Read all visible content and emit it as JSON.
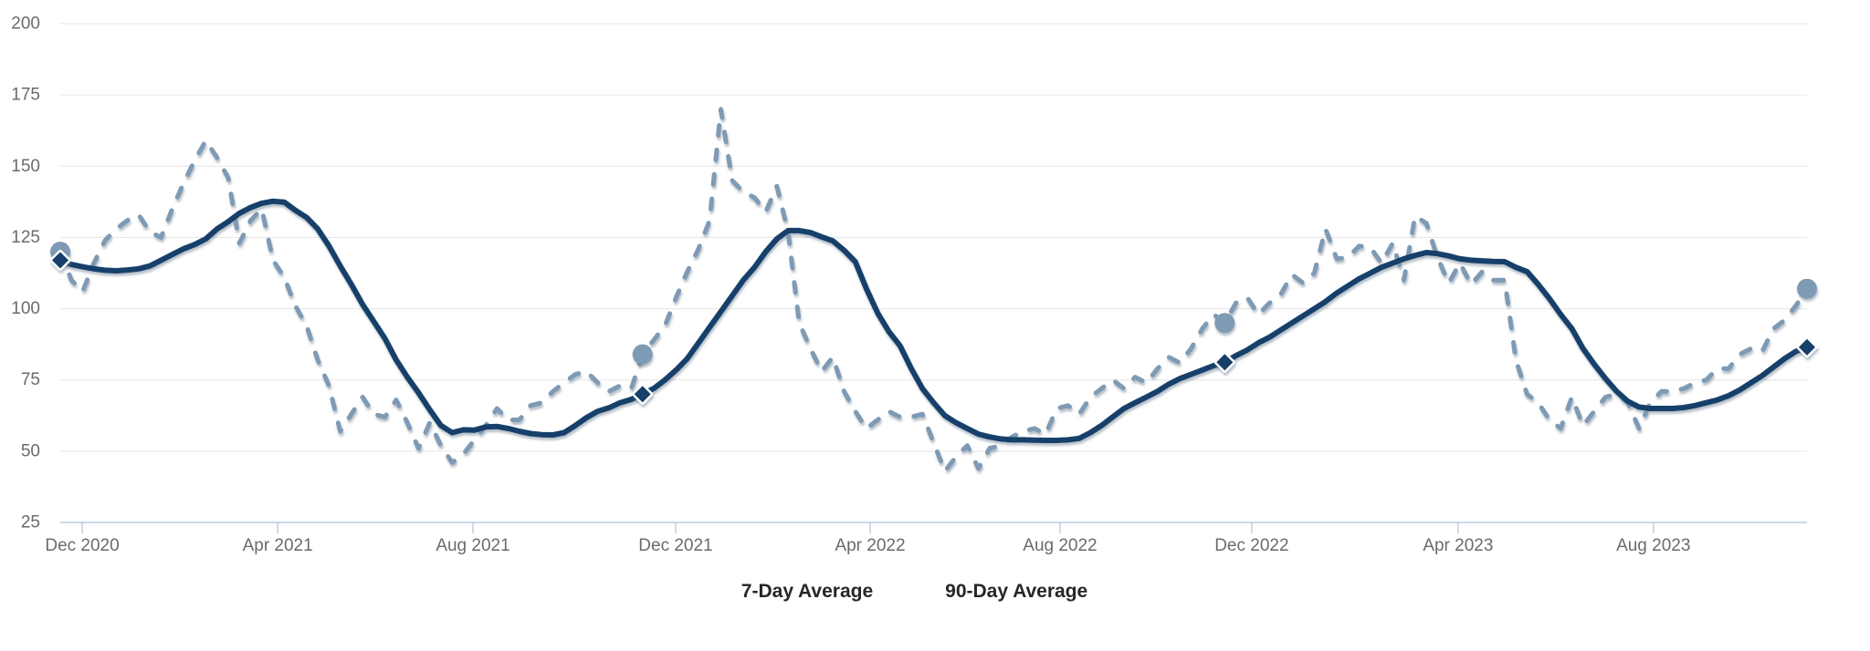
{
  "chart_data": {
    "type": "line",
    "title": "",
    "x_axis": {
      "tick_labels": [
        "Dec 2020",
        "Apr 2021",
        "Aug 2021",
        "Dec 2021",
        "Apr 2022",
        "Aug 2022",
        "Dec 2022",
        "Apr 2023",
        "Aug 2023"
      ]
    },
    "y_axis": {
      "tick_values": [
        25,
        50,
        75,
        100,
        125,
        150,
        175,
        200
      ],
      "min": 25,
      "max": 200
    },
    "grid": "horizontal",
    "legend_position": "bottom-center",
    "weeks": 157,
    "highlight_indices": [
      0,
      52,
      104,
      156
    ],
    "series": [
      {
        "name": "7-Day Average",
        "style": "dashed",
        "color": "#7E9AB4",
        "marker": "circle",
        "values": [
          120,
          110,
          106,
          116,
          124,
          128,
          131,
          133,
          127,
          125,
          135,
          144,
          152,
          159,
          153,
          146,
          123,
          131,
          135,
          117,
          111,
          101,
          94,
          82,
          73,
          57,
          63,
          69,
          63,
          62,
          68,
          60,
          51,
          60,
          52,
          46,
          49,
          54,
          59,
          65,
          61,
          61,
          66,
          67,
          71,
          74,
          77,
          78,
          74,
          71,
          73,
          72,
          84,
          89,
          94,
          104,
          113,
          121,
          131,
          170,
          145,
          141,
          139,
          134,
          143,
          127,
          95,
          86,
          78,
          83,
          71,
          64,
          58,
          61,
          64,
          62,
          62,
          63,
          53,
          43,
          48,
          52,
          44,
          51,
          52,
          55,
          57,
          58,
          56,
          65,
          66,
          63,
          69,
          72,
          75,
          72,
          76,
          74,
          79,
          83,
          81,
          86,
          93,
          98,
          95,
          102,
          104,
          98,
          102,
          105,
          112,
          109,
          112.5,
          128,
          117.5,
          118,
          122,
          121.5,
          116,
          123,
          110,
          132.5,
          130,
          118,
          109,
          116,
          108.5,
          113,
          110,
          110,
          82,
          70,
          67,
          61,
          58,
          69,
          59,
          64,
          69,
          70,
          67,
          58,
          67,
          71,
          71,
          72,
          74,
          75,
          79,
          79,
          84,
          86,
          85,
          93,
          96,
          101,
          107
        ]
      },
      {
        "name": "90-Day Average",
        "style": "solid",
        "color": "#14406A",
        "marker": "diamond",
        "values": [
          117,
          115.5,
          114.7,
          114,
          113.5,
          113.3,
          113.6,
          114,
          115,
          117,
          119,
          121,
          122.5,
          124.5,
          128,
          130.5,
          133.5,
          135.5,
          137,
          137.7,
          137.4,
          134.5,
          132,
          128,
          122,
          115,
          108.5,
          101.5,
          95.5,
          89.5,
          82,
          76,
          70.5,
          64.5,
          59,
          56.5,
          57.5,
          57.4,
          58.5,
          58.7,
          58,
          57,
          56.2,
          55.8,
          55.7,
          56.5,
          59,
          61.8,
          64,
          65.2,
          67,
          68.2,
          70,
          72,
          75,
          78.5,
          82.5,
          88,
          93.5,
          99,
          104.5,
          110,
          114.5,
          120,
          124.5,
          127.4,
          127.4,
          126.7,
          125.2,
          123.8,
          120.5,
          116.5,
          107,
          98.5,
          92,
          87,
          79,
          72,
          67,
          62.5,
          60,
          58,
          56,
          55,
          54.3,
          54,
          54,
          53.9,
          53.8,
          53.8,
          54,
          54.5,
          56.5,
          59,
          62,
          65,
          67,
          69,
          71,
          73.5,
          75.5,
          77,
          78.5,
          80,
          81.2,
          83.5,
          85.5,
          88,
          90,
          92.5,
          95,
          97.5,
          100,
          102.5,
          105.5,
          108,
          110.5,
          112.5,
          114.5,
          116,
          117.5,
          118.7,
          119.7,
          119.3,
          118.5,
          117.5,
          117,
          116.8,
          116.6,
          116.5,
          114.5,
          113,
          108.5,
          103.5,
          98,
          93,
          86,
          80.5,
          75.5,
          71,
          67.5,
          65.5,
          65,
          65,
          65,
          65.3,
          66,
          67,
          68,
          69.5,
          71.5,
          74,
          76.5,
          79.5,
          82.5,
          85,
          86.5
        ]
      }
    ],
    "colors": {
      "background": "#FFFFFF",
      "grid_line": "#E6E6E6",
      "axis_line": "#C9D8EA",
      "tick_mark": "#BCCFE4",
      "axis_label": "#6B6B6B",
      "legend_text": "#262626",
      "series_7_day": "#7E9AB4",
      "series_90_day": "#14406A"
    }
  }
}
